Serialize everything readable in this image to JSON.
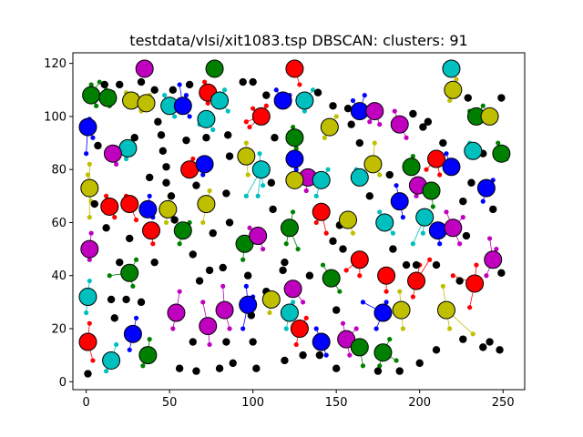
{
  "chart_data": {
    "type": "scatter",
    "title": "testdata/vlsi/xit1083.tsp DBSCAN: clusters: 91",
    "xlabel": "",
    "ylabel": "",
    "xlim": [
      -8,
      263
    ],
    "ylim": [
      -3,
      124
    ],
    "x_ticks": [
      0,
      50,
      100,
      150,
      200,
      250
    ],
    "y_ticks": [
      0,
      20,
      40,
      60,
      80,
      100,
      120
    ],
    "x_tick_labels": [
      "0",
      "50",
      "100",
      "150",
      "200",
      "250"
    ],
    "y_tick_labels": [
      "0",
      "20",
      "40",
      "60",
      "80",
      "100",
      "120"
    ],
    "grid": false,
    "legend": "none",
    "colors": {
      "green": "#008000",
      "blue": "#0000ff",
      "red": "#ff0000",
      "cyan": "#00bfbf",
      "magenta": "#bf00bf",
      "olive": "#bfbf00",
      "noise": "#000000"
    },
    "centers": [
      [
        3,
        108,
        "green"
      ],
      [
        13,
        107,
        "green"
      ],
      [
        27,
        106,
        "olive"
      ],
      [
        36,
        105,
        "olive"
      ],
      [
        35,
        118,
        "magenta"
      ],
      [
        50,
        104,
        "cyan"
      ],
      [
        58,
        104,
        "blue"
      ],
      [
        73,
        109,
        "red"
      ],
      [
        77,
        118,
        "green"
      ],
      [
        80,
        106,
        "cyan"
      ],
      [
        72,
        99,
        "cyan"
      ],
      [
        105,
        100,
        "red"
      ],
      [
        118,
        106,
        "blue"
      ],
      [
        125,
        118,
        "red"
      ],
      [
        131,
        106,
        "cyan"
      ],
      [
        164,
        102,
        "blue"
      ],
      [
        173,
        102,
        "magenta"
      ],
      [
        188,
        97,
        "magenta"
      ],
      [
        219,
        118,
        "cyan"
      ],
      [
        220,
        110,
        "olive"
      ],
      [
        234,
        100,
        "green"
      ],
      [
        242,
        100,
        "olive"
      ],
      [
        1,
        96,
        "blue"
      ],
      [
        25,
        88,
        "cyan"
      ],
      [
        16,
        86,
        "magenta"
      ],
      [
        125,
        92,
        "green"
      ],
      [
        146,
        96,
        "olive"
      ],
      [
        96,
        85,
        "olive"
      ],
      [
        105,
        80,
        "cyan"
      ],
      [
        62,
        80,
        "red"
      ],
      [
        71,
        82,
        "blue"
      ],
      [
        125,
        84,
        "blue"
      ],
      [
        133,
        77,
        "magenta"
      ],
      [
        141,
        76,
        "cyan"
      ],
      [
        125,
        76,
        "olive"
      ],
      [
        164,
        77,
        "cyan"
      ],
      [
        172,
        82,
        "olive"
      ],
      [
        195,
        81,
        "green"
      ],
      [
        210,
        84,
        "red"
      ],
      [
        219,
        81,
        "blue"
      ],
      [
        232,
        87,
        "cyan"
      ],
      [
        249,
        86,
        "green"
      ],
      [
        2,
        73,
        "olive"
      ],
      [
        14,
        66,
        "red"
      ],
      [
        26,
        67,
        "red"
      ],
      [
        37,
        65,
        "blue"
      ],
      [
        39,
        57,
        "red"
      ],
      [
        49,
        65,
        "olive"
      ],
      [
        72,
        67,
        "olive"
      ],
      [
        199,
        74,
        "magenta"
      ],
      [
        207,
        72,
        "green"
      ],
      [
        240,
        73,
        "blue"
      ],
      [
        188,
        68,
        "blue"
      ],
      [
        58,
        57,
        "green"
      ],
      [
        95,
        52,
        "green"
      ],
      [
        103,
        55,
        "magenta"
      ],
      [
        122,
        58,
        "green"
      ],
      [
        141,
        64,
        "red"
      ],
      [
        157,
        61,
        "olive"
      ],
      [
        179,
        60,
        "cyan"
      ],
      [
        203,
        62,
        "cyan"
      ],
      [
        211,
        57,
        "blue"
      ],
      [
        220,
        58,
        "magenta"
      ],
      [
        2,
        50,
        "magenta"
      ],
      [
        26,
        41,
        "green"
      ],
      [
        147,
        39,
        "green"
      ],
      [
        164,
        46,
        "red"
      ],
      [
        180,
        40,
        "red"
      ],
      [
        198,
        38,
        "red"
      ],
      [
        244,
        46,
        "magenta"
      ],
      [
        1,
        32,
        "cyan"
      ],
      [
        111,
        31,
        "olive"
      ],
      [
        124,
        35,
        "magenta"
      ],
      [
        122,
        26,
        "cyan"
      ],
      [
        233,
        37,
        "red"
      ],
      [
        54,
        26,
        "magenta"
      ],
      [
        73,
        21,
        "magenta"
      ],
      [
        83,
        27,
        "magenta"
      ],
      [
        97,
        29,
        "blue"
      ],
      [
        128,
        20,
        "red"
      ],
      [
        178,
        26,
        "blue"
      ],
      [
        189,
        27,
        "olive"
      ],
      [
        216,
        27,
        "olive"
      ],
      [
        1,
        15,
        "red"
      ],
      [
        28,
        18,
        "blue"
      ],
      [
        37,
        10,
        "green"
      ],
      [
        15,
        8,
        "cyan"
      ],
      [
        141,
        15,
        "blue"
      ],
      [
        156,
        16,
        "magenta"
      ],
      [
        164,
        13,
        "green"
      ],
      [
        178,
        11,
        "green"
      ]
    ],
    "noise_points": [
      [
        1,
        3
      ],
      [
        56,
        5
      ],
      [
        80,
        5
      ],
      [
        102,
        5
      ],
      [
        150,
        5
      ],
      [
        33,
        30
      ],
      [
        41,
        45
      ],
      [
        38,
        77
      ],
      [
        43,
        98
      ],
      [
        45,
        93
      ],
      [
        60,
        91
      ],
      [
        85,
        93
      ],
      [
        86,
        85
      ],
      [
        66,
        74
      ],
      [
        84,
        71
      ],
      [
        86,
        60
      ],
      [
        76,
        56
      ],
      [
        64,
        48
      ],
      [
        74,
        42
      ],
      [
        82,
        43
      ],
      [
        68,
        38
      ],
      [
        99,
        25
      ],
      [
        100,
        15
      ],
      [
        84,
        15
      ],
      [
        64,
        15
      ],
      [
        66,
        4
      ],
      [
        88,
        7
      ],
      [
        112,
        65
      ],
      [
        111,
        75
      ],
      [
        113,
        92
      ],
      [
        119,
        45
      ],
      [
        134,
        40
      ],
      [
        118,
        42
      ],
      [
        148,
        53
      ],
      [
        152,
        59
      ],
      [
        154,
        50
      ],
      [
        140,
        10
      ],
      [
        150,
        27
      ],
      [
        159,
        97
      ],
      [
        164,
        90
      ],
      [
        148,
        104
      ],
      [
        157,
        103
      ],
      [
        139,
        109
      ],
      [
        205,
        98
      ],
      [
        214,
        90
      ],
      [
        202,
        96
      ],
      [
        196,
        101
      ],
      [
        184,
        50
      ],
      [
        192,
        44
      ],
      [
        198,
        44
      ],
      [
        210,
        44
      ],
      [
        224,
        38
      ],
      [
        226,
        16
      ],
      [
        238,
        13
      ],
      [
        242,
        15
      ],
      [
        248,
        12
      ],
      [
        249,
        41
      ],
      [
        249,
        107
      ],
      [
        229,
        107
      ],
      [
        238,
        86
      ],
      [
        244,
        65
      ],
      [
        210,
        12
      ],
      [
        200,
        7
      ],
      [
        188,
        4
      ],
      [
        175,
        4
      ],
      [
        119,
        8
      ],
      [
        130,
        10
      ],
      [
        108,
        34
      ],
      [
        97,
        40
      ],
      [
        17,
        24
      ],
      [
        24,
        31
      ],
      [
        26,
        54
      ],
      [
        29,
        92
      ],
      [
        20,
        112
      ],
      [
        33,
        113
      ],
      [
        11,
        112
      ],
      [
        41,
        110
      ],
      [
        52,
        110
      ],
      [
        62,
        112
      ],
      [
        46,
        87
      ],
      [
        48,
        81
      ],
      [
        48,
        75
      ],
      [
        51,
        70
      ],
      [
        53,
        61
      ],
      [
        72,
        92
      ],
      [
        94,
        113
      ],
      [
        100,
        113
      ],
      [
        108,
        108
      ],
      [
        170,
        70
      ],
      [
        182,
        78
      ],
      [
        228,
        55
      ],
      [
        226,
        68
      ],
      [
        231,
        75
      ],
      [
        15,
        31
      ],
      [
        20,
        45
      ],
      [
        12,
        58
      ],
      [
        7,
        89
      ],
      [
        5,
        67
      ]
    ],
    "cluster_members": [
      [
        3,
        112
      ],
      [
        5,
        110
      ],
      [
        8,
        113
      ],
      [
        12,
        110
      ],
      [
        16,
        109
      ],
      [
        14,
        104
      ],
      [
        6,
        104
      ],
      [
        24,
        109
      ],
      [
        30,
        108
      ],
      [
        33,
        102
      ],
      [
        38,
        108
      ],
      [
        47,
        108
      ],
      [
        53,
        100
      ],
      [
        60,
        108
      ],
      [
        62,
        100
      ],
      [
        56,
        112
      ],
      [
        71,
        113
      ],
      [
        73,
        105
      ],
      [
        68,
        97
      ],
      [
        76,
        95
      ],
      [
        83,
        110
      ],
      [
        85,
        102
      ],
      [
        100,
        103
      ],
      [
        108,
        104
      ],
      [
        114,
        110
      ],
      [
        122,
        108
      ],
      [
        128,
        112
      ],
      [
        136,
        110
      ],
      [
        131,
        102
      ],
      [
        160,
        106
      ],
      [
        167,
        108
      ],
      [
        170,
        98
      ],
      [
        176,
        97
      ],
      [
        185,
        102
      ],
      [
        192,
        92
      ],
      [
        222,
        114
      ],
      [
        218,
        106
      ],
      [
        230,
        102
      ],
      [
        238,
        104
      ],
      [
        4,
        92
      ],
      [
        2,
        99
      ],
      [
        24,
        84
      ],
      [
        18,
        82
      ],
      [
        124,
        96
      ],
      [
        126,
        88
      ],
      [
        143,
        92
      ],
      [
        150,
        100
      ],
      [
        96,
        90
      ],
      [
        97,
        78
      ],
      [
        96,
        70
      ],
      [
        104,
        86
      ],
      [
        106,
        74
      ],
      [
        103,
        70
      ],
      [
        64,
        84
      ],
      [
        70,
        78
      ],
      [
        126,
        80
      ],
      [
        132,
        72
      ],
      [
        138,
        70
      ],
      [
        145,
        80
      ],
      [
        162,
        80
      ],
      [
        168,
        82
      ],
      [
        173,
        90
      ],
      [
        176,
        78
      ],
      [
        196,
        85
      ],
      [
        204,
        80
      ],
      [
        212,
        78
      ],
      [
        216,
        86
      ],
      [
        230,
        90
      ],
      [
        247,
        90
      ],
      [
        252,
        84
      ],
      [
        2,
        82
      ],
      [
        1,
        78
      ],
      [
        3,
        68
      ],
      [
        2,
        62
      ],
      [
        0,
        86
      ],
      [
        12,
        70
      ],
      [
        17,
        62
      ],
      [
        24,
        70
      ],
      [
        30,
        61
      ],
      [
        38,
        70
      ],
      [
        40,
        62
      ],
      [
        40,
        52
      ],
      [
        48,
        60
      ],
      [
        50,
        70
      ],
      [
        70,
        60
      ],
      [
        74,
        72
      ],
      [
        198,
        70
      ],
      [
        208,
        66
      ],
      [
        238,
        68
      ],
      [
        244,
        76
      ],
      [
        186,
        74
      ],
      [
        190,
        62
      ],
      [
        56,
        52
      ],
      [
        62,
        60
      ],
      [
        94,
        46
      ],
      [
        98,
        58
      ],
      [
        106,
        50
      ],
      [
        120,
        52
      ],
      [
        124,
        64
      ],
      [
        127,
        50
      ],
      [
        138,
        60
      ],
      [
        144,
        56
      ],
      [
        160,
        56
      ],
      [
        176,
        64
      ],
      [
        184,
        56
      ],
      [
        202,
        56
      ],
      [
        212,
        52
      ],
      [
        216,
        64
      ],
      [
        224,
        52
      ],
      [
        226,
        62
      ],
      [
        2,
        46
      ],
      [
        3,
        56
      ],
      [
        28,
        36
      ],
      [
        30,
        46
      ],
      [
        142,
        44
      ],
      [
        152,
        34
      ],
      [
        156,
        42
      ],
      [
        164,
        40
      ],
      [
        166,
        30
      ],
      [
        180,
        34
      ],
      [
        196,
        32
      ],
      [
        200,
        44
      ],
      [
        240,
        40
      ],
      [
        242,
        54
      ],
      [
        246,
        50
      ],
      [
        0,
        26
      ],
      [
        2,
        38
      ],
      [
        110,
        26
      ],
      [
        124,
        30
      ],
      [
        120,
        20
      ],
      [
        230,
        28
      ],
      [
        234,
        44
      ],
      [
        232,
        18
      ],
      [
        52,
        20
      ],
      [
        56,
        34
      ],
      [
        70,
        30
      ],
      [
        74,
        14
      ],
      [
        82,
        36
      ],
      [
        86,
        20
      ],
      [
        96,
        36
      ],
      [
        94,
        20
      ],
      [
        100,
        32
      ],
      [
        126,
        14
      ],
      [
        132,
        24
      ],
      [
        130,
        30
      ],
      [
        174,
        20
      ],
      [
        180,
        30
      ],
      [
        188,
        34
      ],
      [
        190,
        20
      ],
      [
        214,
        36
      ],
      [
        218,
        20
      ],
      [
        220,
        40
      ],
      [
        2,
        22
      ],
      [
        4,
        8
      ],
      [
        26,
        12
      ],
      [
        30,
        24
      ],
      [
        38,
        16
      ],
      [
        34,
        6
      ],
      [
        12,
        4
      ],
      [
        18,
        14
      ],
      [
        138,
        20
      ],
      [
        144,
        10
      ],
      [
        154,
        22
      ],
      [
        158,
        10
      ],
      [
        162,
        20
      ],
      [
        166,
        6
      ],
      [
        176,
        6
      ],
      [
        182,
        16
      ],
      [
        186,
        8
      ],
      [
        206,
        46
      ],
      [
        196,
        52
      ],
      [
        14,
        40
      ],
      [
        98,
        96
      ],
      [
        96,
        98
      ]
    ]
  }
}
